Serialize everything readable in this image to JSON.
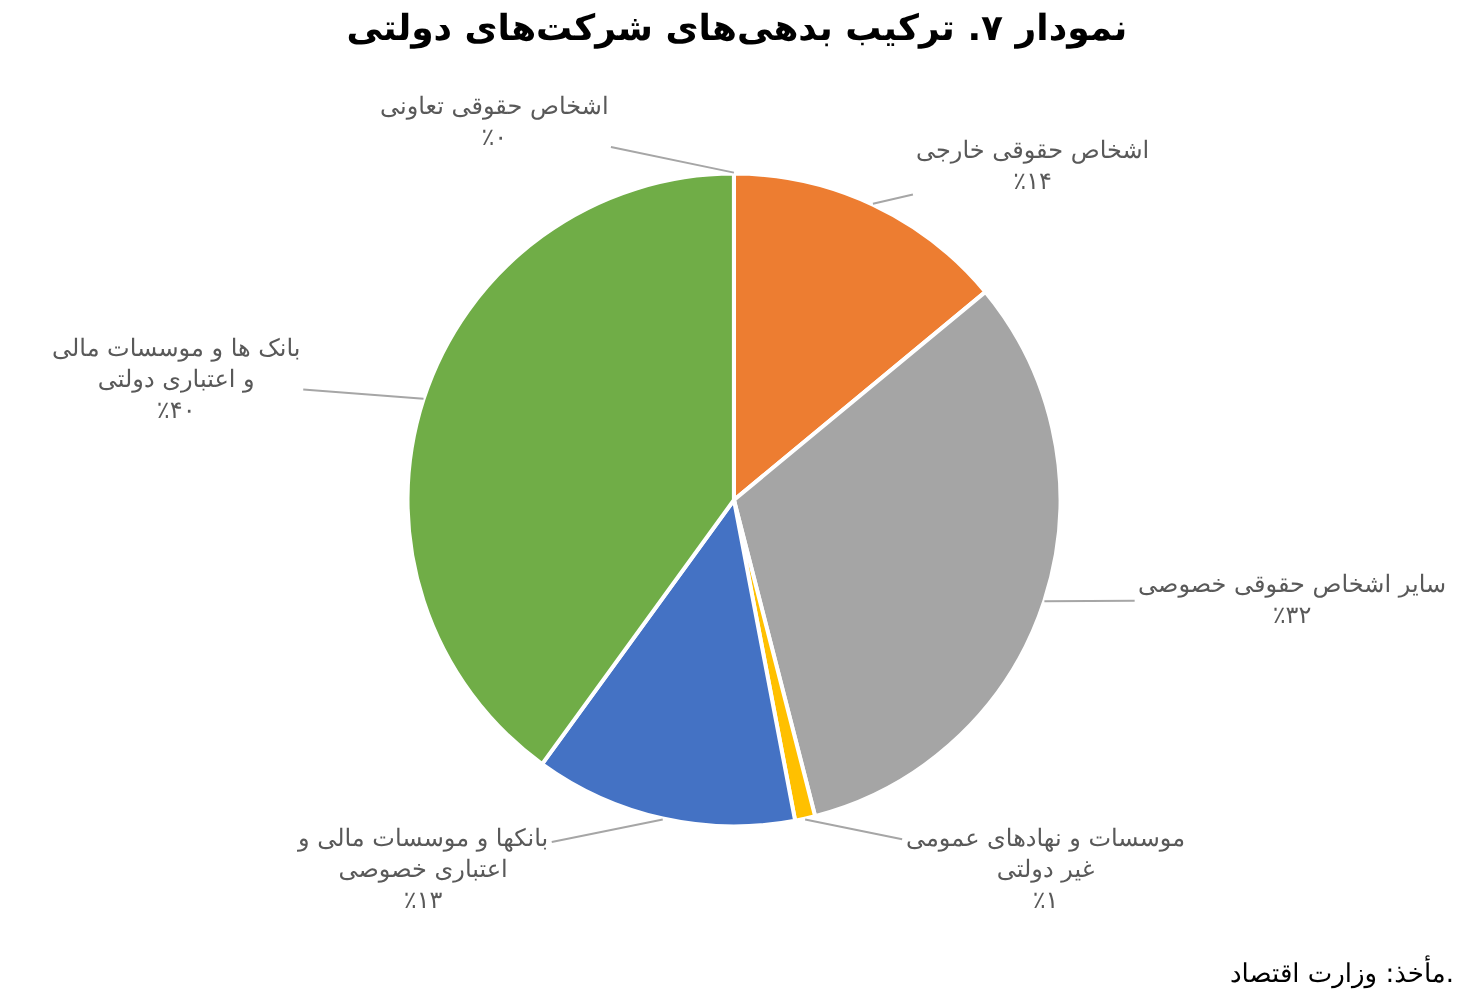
{
  "chart_data": {
    "type": "pie",
    "title": "نمودار ۷. ترکیب بدهی‌های شرکت‌های دولتی",
    "categories": [
      "اشخاص حقوقی خارجی",
      "سایر اشخاص حقوقی خصوصی",
      "موسسات و نهادهای عمومی غیر دولتی",
      "بانکها و موسسات مالی و اعتباری خصوصی",
      "بانک ها و موسسات مالی و اعتباری دولتی",
      "اشخاص حقوقی تعاونی"
    ],
    "values": [
      14,
      32,
      1,
      13,
      40,
      0
    ],
    "colors": [
      "#ed7d31",
      "#a5a5a5",
      "#ffc000",
      "#4472c4",
      "#70ad47",
      "#5b9bd5"
    ],
    "value_labels": [
      "٪۱۴",
      "٪۳۲",
      "٪۱",
      "٪۱۳",
      "٪۴۰",
      "٪۰"
    ],
    "annotations": [
      "مأخذ: وزارت اقتصاد."
    ]
  }
}
